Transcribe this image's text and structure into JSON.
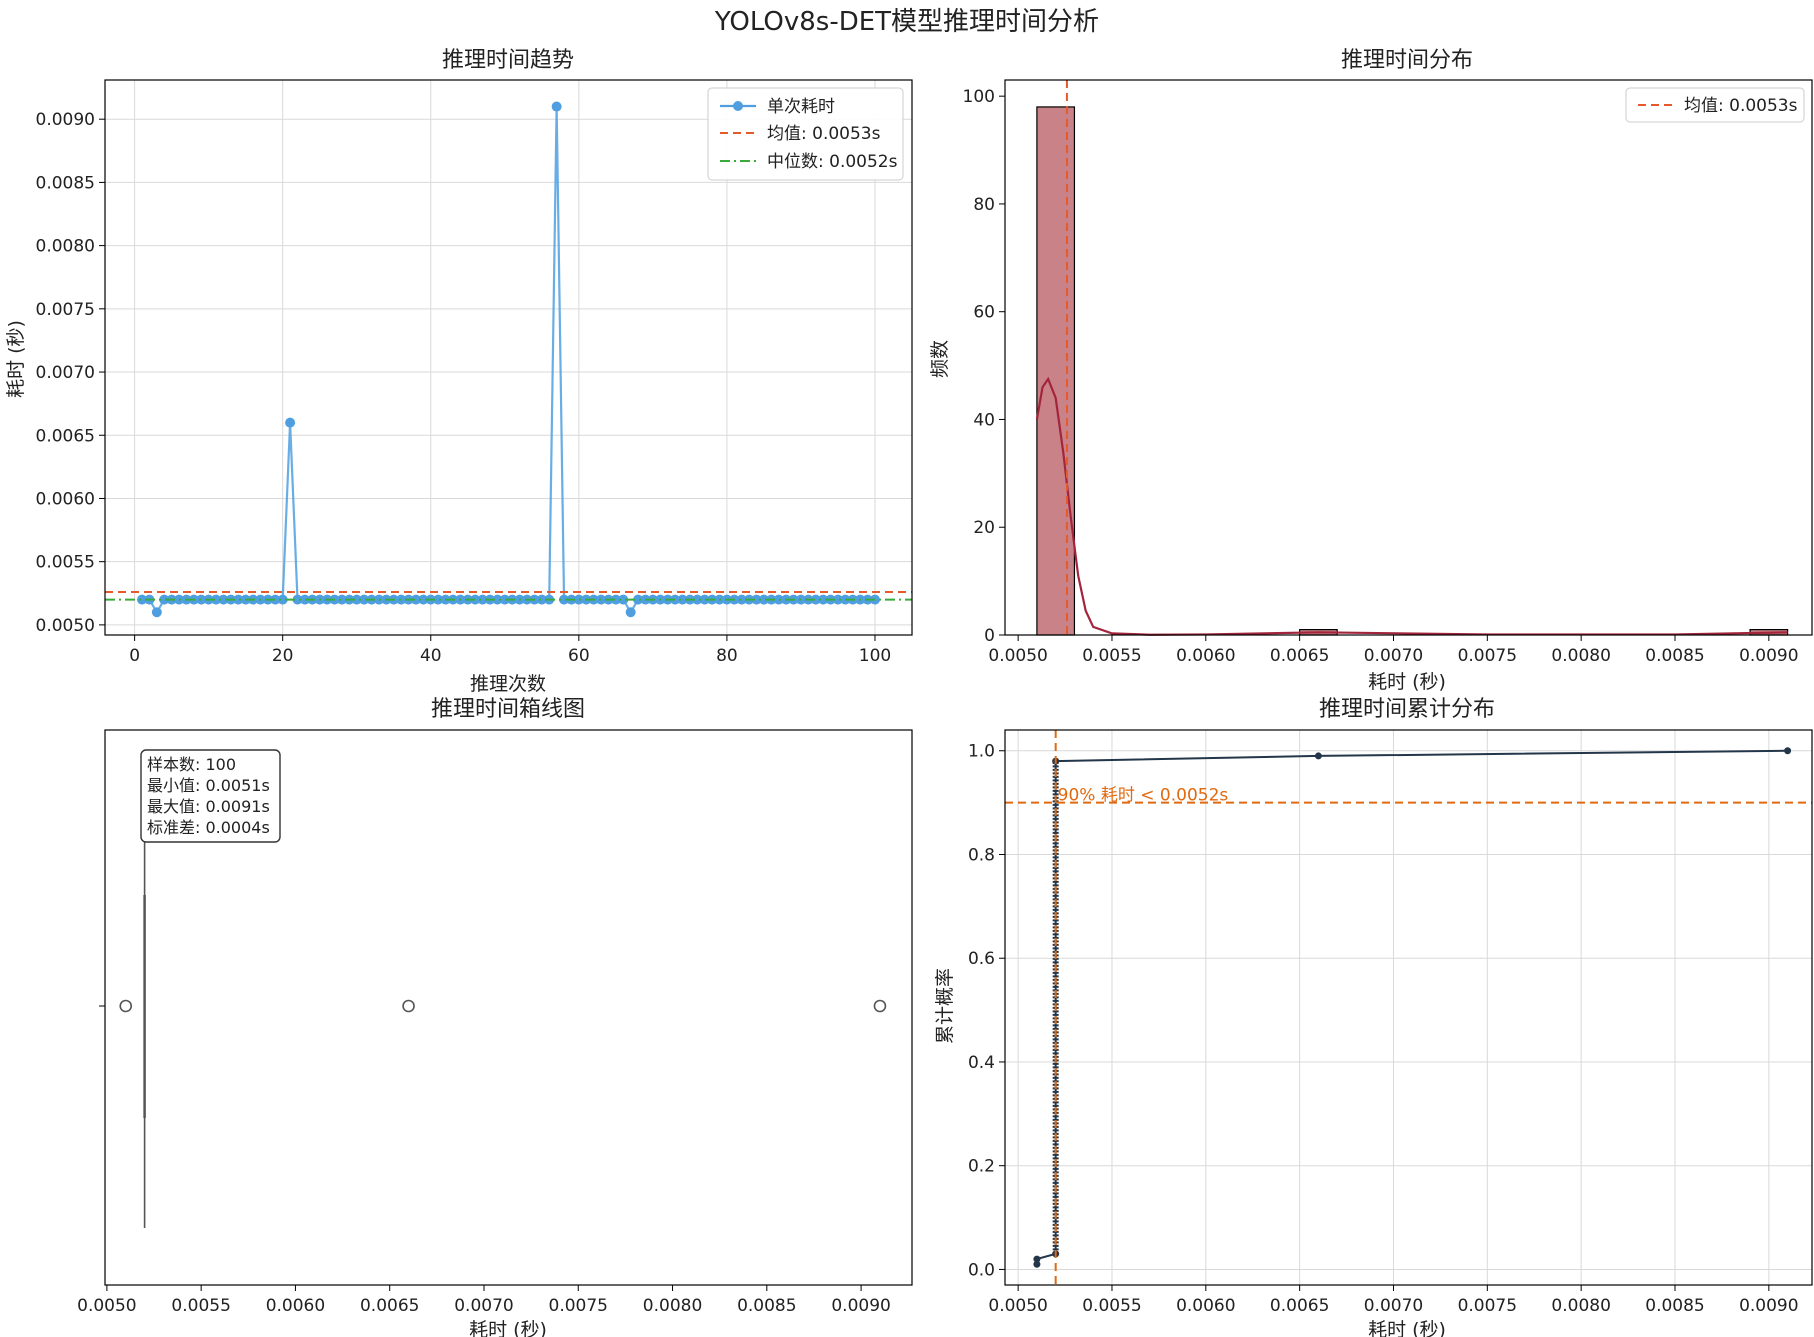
{
  "figure_title": "YOLOv8s-DET模型推理时间分析",
  "colors": {
    "line": "#4f9fe0",
    "mean": "#e55a2b",
    "median": "#3aaa3a",
    "hist_bar": "#c98388",
    "kde": "#a3253b",
    "ecdf": "#24364a",
    "threshold": "#e06a10",
    "grid": "#d9d9d9",
    "box": "#555555"
  },
  "chart_data": [
    {
      "id": "trend",
      "type": "line",
      "title": "推理时间趋势",
      "xlabel": "推理次数",
      "ylabel": "耗时 (秒)",
      "xlim": [
        -4,
        105
      ],
      "ylim": [
        0.00492,
        0.00931
      ],
      "xticks": [
        0,
        20,
        40,
        60,
        80,
        100
      ],
      "yticks": [
        0.005,
        0.0055,
        0.006,
        0.0065,
        0.007,
        0.0075,
        0.008,
        0.0085,
        0.009
      ],
      "ytick_labels": [
        "0.0050",
        "0.0055",
        "0.0060",
        "0.0065",
        "0.0070",
        "0.0075",
        "0.0080",
        "0.0085",
        "0.0090"
      ],
      "xtick_labels": [
        "0",
        "20",
        "40",
        "60",
        "80",
        "100"
      ],
      "grid": true,
      "series": [
        {
          "name": "单次耗时",
          "x_start": 1,
          "values": [
            0.0052,
            0.0052,
            0.0051,
            0.0052,
            0.0052,
            0.0052,
            0.0052,
            0.0052,
            0.0052,
            0.0052,
            0.0052,
            0.0052,
            0.0052,
            0.0052,
            0.0052,
            0.0052,
            0.0052,
            0.0052,
            0.0052,
            0.0052,
            0.0066,
            0.0052,
            0.0052,
            0.0052,
            0.0052,
            0.0052,
            0.0052,
            0.0052,
            0.0052,
            0.0052,
            0.0052,
            0.0052,
            0.0052,
            0.0052,
            0.0052,
            0.0052,
            0.0052,
            0.0052,
            0.0052,
            0.0052,
            0.0052,
            0.0052,
            0.0052,
            0.0052,
            0.0052,
            0.0052,
            0.0052,
            0.0052,
            0.0052,
            0.0052,
            0.0052,
            0.0052,
            0.0052,
            0.0052,
            0.0052,
            0.0052,
            0.0091,
            0.0052,
            0.0052,
            0.0052,
            0.0052,
            0.0052,
            0.0052,
            0.0052,
            0.0052,
            0.0052,
            0.0051,
            0.0052,
            0.0052,
            0.0052,
            0.0052,
            0.0052,
            0.0052,
            0.0052,
            0.0052,
            0.0052,
            0.0052,
            0.0052,
            0.0052,
            0.0052,
            0.0052,
            0.0052,
            0.0052,
            0.0052,
            0.0052,
            0.0052,
            0.0052,
            0.0052,
            0.0052,
            0.0052,
            0.0052,
            0.0052,
            0.0052,
            0.0052,
            0.0052,
            0.0052,
            0.0052,
            0.0052,
            0.0052,
            0.0052
          ]
        }
      ],
      "mean": 0.00526,
      "median": 0.0052,
      "legend": [
        "单次耗时",
        "均值: 0.0053s",
        "中位数: 0.0052s"
      ],
      "legend_position": "top-right"
    },
    {
      "id": "hist",
      "type": "bar",
      "title": "推理时间分布",
      "xlabel": "耗时 (秒)",
      "ylabel": "频数",
      "xlim": [
        0.00493,
        0.00923
      ],
      "ylim": [
        0,
        103
      ],
      "xticks": [
        0.005,
        0.0055,
        0.006,
        0.0065,
        0.007,
        0.0075,
        0.008,
        0.0085,
        0.009
      ],
      "xtick_labels": [
        "0.0050",
        "0.0055",
        "0.0060",
        "0.0065",
        "0.0070",
        "0.0075",
        "0.0080",
        "0.0085",
        "0.0090"
      ],
      "yticks": [
        0,
        20,
        40,
        60,
        80,
        100
      ],
      "ytick_labels": [
        "0",
        "20",
        "40",
        "60",
        "80",
        "100"
      ],
      "grid": false,
      "bins": [
        {
          "start": 0.0051,
          "end": 0.0053,
          "count": 98
        },
        {
          "start": 0.0065,
          "end": 0.0067,
          "count": 1
        },
        {
          "start": 0.0089,
          "end": 0.0091,
          "count": 1
        }
      ],
      "kde": [
        [
          0.0051,
          40
        ],
        [
          0.00513,
          46
        ],
        [
          0.00516,
          47.5
        ],
        [
          0.0052,
          44
        ],
        [
          0.00524,
          34
        ],
        [
          0.00528,
          22
        ],
        [
          0.00532,
          11
        ],
        [
          0.00536,
          4.5
        ],
        [
          0.0054,
          1.5
        ],
        [
          0.0055,
          0.3
        ],
        [
          0.0057,
          0.05
        ],
        [
          0.006,
          0.1
        ],
        [
          0.0066,
          0.5
        ],
        [
          0.0075,
          0.1
        ],
        [
          0.0085,
          0.1
        ],
        [
          0.0091,
          0.5
        ]
      ],
      "mean": 0.00526,
      "legend": [
        "均值: 0.0053s"
      ],
      "legend_position": "top-right"
    },
    {
      "id": "box",
      "type": "box",
      "title": "推理时间箱线图",
      "xlabel": "耗时 (秒)",
      "xlim": [
        0.00499,
        0.00927
      ],
      "xticks": [
        0.005,
        0.0055,
        0.006,
        0.0065,
        0.007,
        0.0075,
        0.008,
        0.0085,
        0.009
      ],
      "xtick_labels": [
        "0.0050",
        "0.0055",
        "0.0060",
        "0.0065",
        "0.0070",
        "0.0075",
        "0.0080",
        "0.0085",
        "0.0090"
      ],
      "q1": 0.0052,
      "median": 0.0052,
      "q3": 0.0052,
      "whisker_low": 0.0052,
      "whisker_high": 0.0052,
      "outliers": [
        0.0051,
        0.0066,
        0.0091
      ],
      "stats_box": [
        "样本数: 100",
        "最小值: 0.0051s",
        "最大值: 0.0091s",
        "标准差: 0.0004s"
      ]
    },
    {
      "id": "ecdf",
      "type": "line",
      "title": "推理时间累计分布",
      "xlabel": "耗时 (秒)",
      "ylabel": "累计概率",
      "xlim": [
        0.00493,
        0.00923
      ],
      "ylim": [
        -0.03,
        1.04
      ],
      "xticks": [
        0.005,
        0.0055,
        0.006,
        0.0065,
        0.007,
        0.0075,
        0.008,
        0.0085,
        0.009
      ],
      "xtick_labels": [
        "0.0050",
        "0.0055",
        "0.0060",
        "0.0065",
        "0.0070",
        "0.0075",
        "0.0080",
        "0.0085",
        "0.0090"
      ],
      "yticks": [
        0.0,
        0.2,
        0.4,
        0.6,
        0.8,
        1.0
      ],
      "ytick_labels": [
        "0.0",
        "0.2",
        "0.4",
        "0.6",
        "0.8",
        "1.0"
      ],
      "grid": true,
      "points": [
        [
          0.0051,
          0.01
        ],
        [
          0.0051,
          0.02
        ],
        [
          0.0052,
          0.03
        ],
        [
          0.0052,
          0.98
        ],
        [
          0.0066,
          0.99
        ],
        [
          0.0091,
          1.0
        ]
      ],
      "threshold_x": 0.0052,
      "threshold_y": 0.9,
      "annotation": "90% 耗时 < 0.0052s"
    }
  ]
}
